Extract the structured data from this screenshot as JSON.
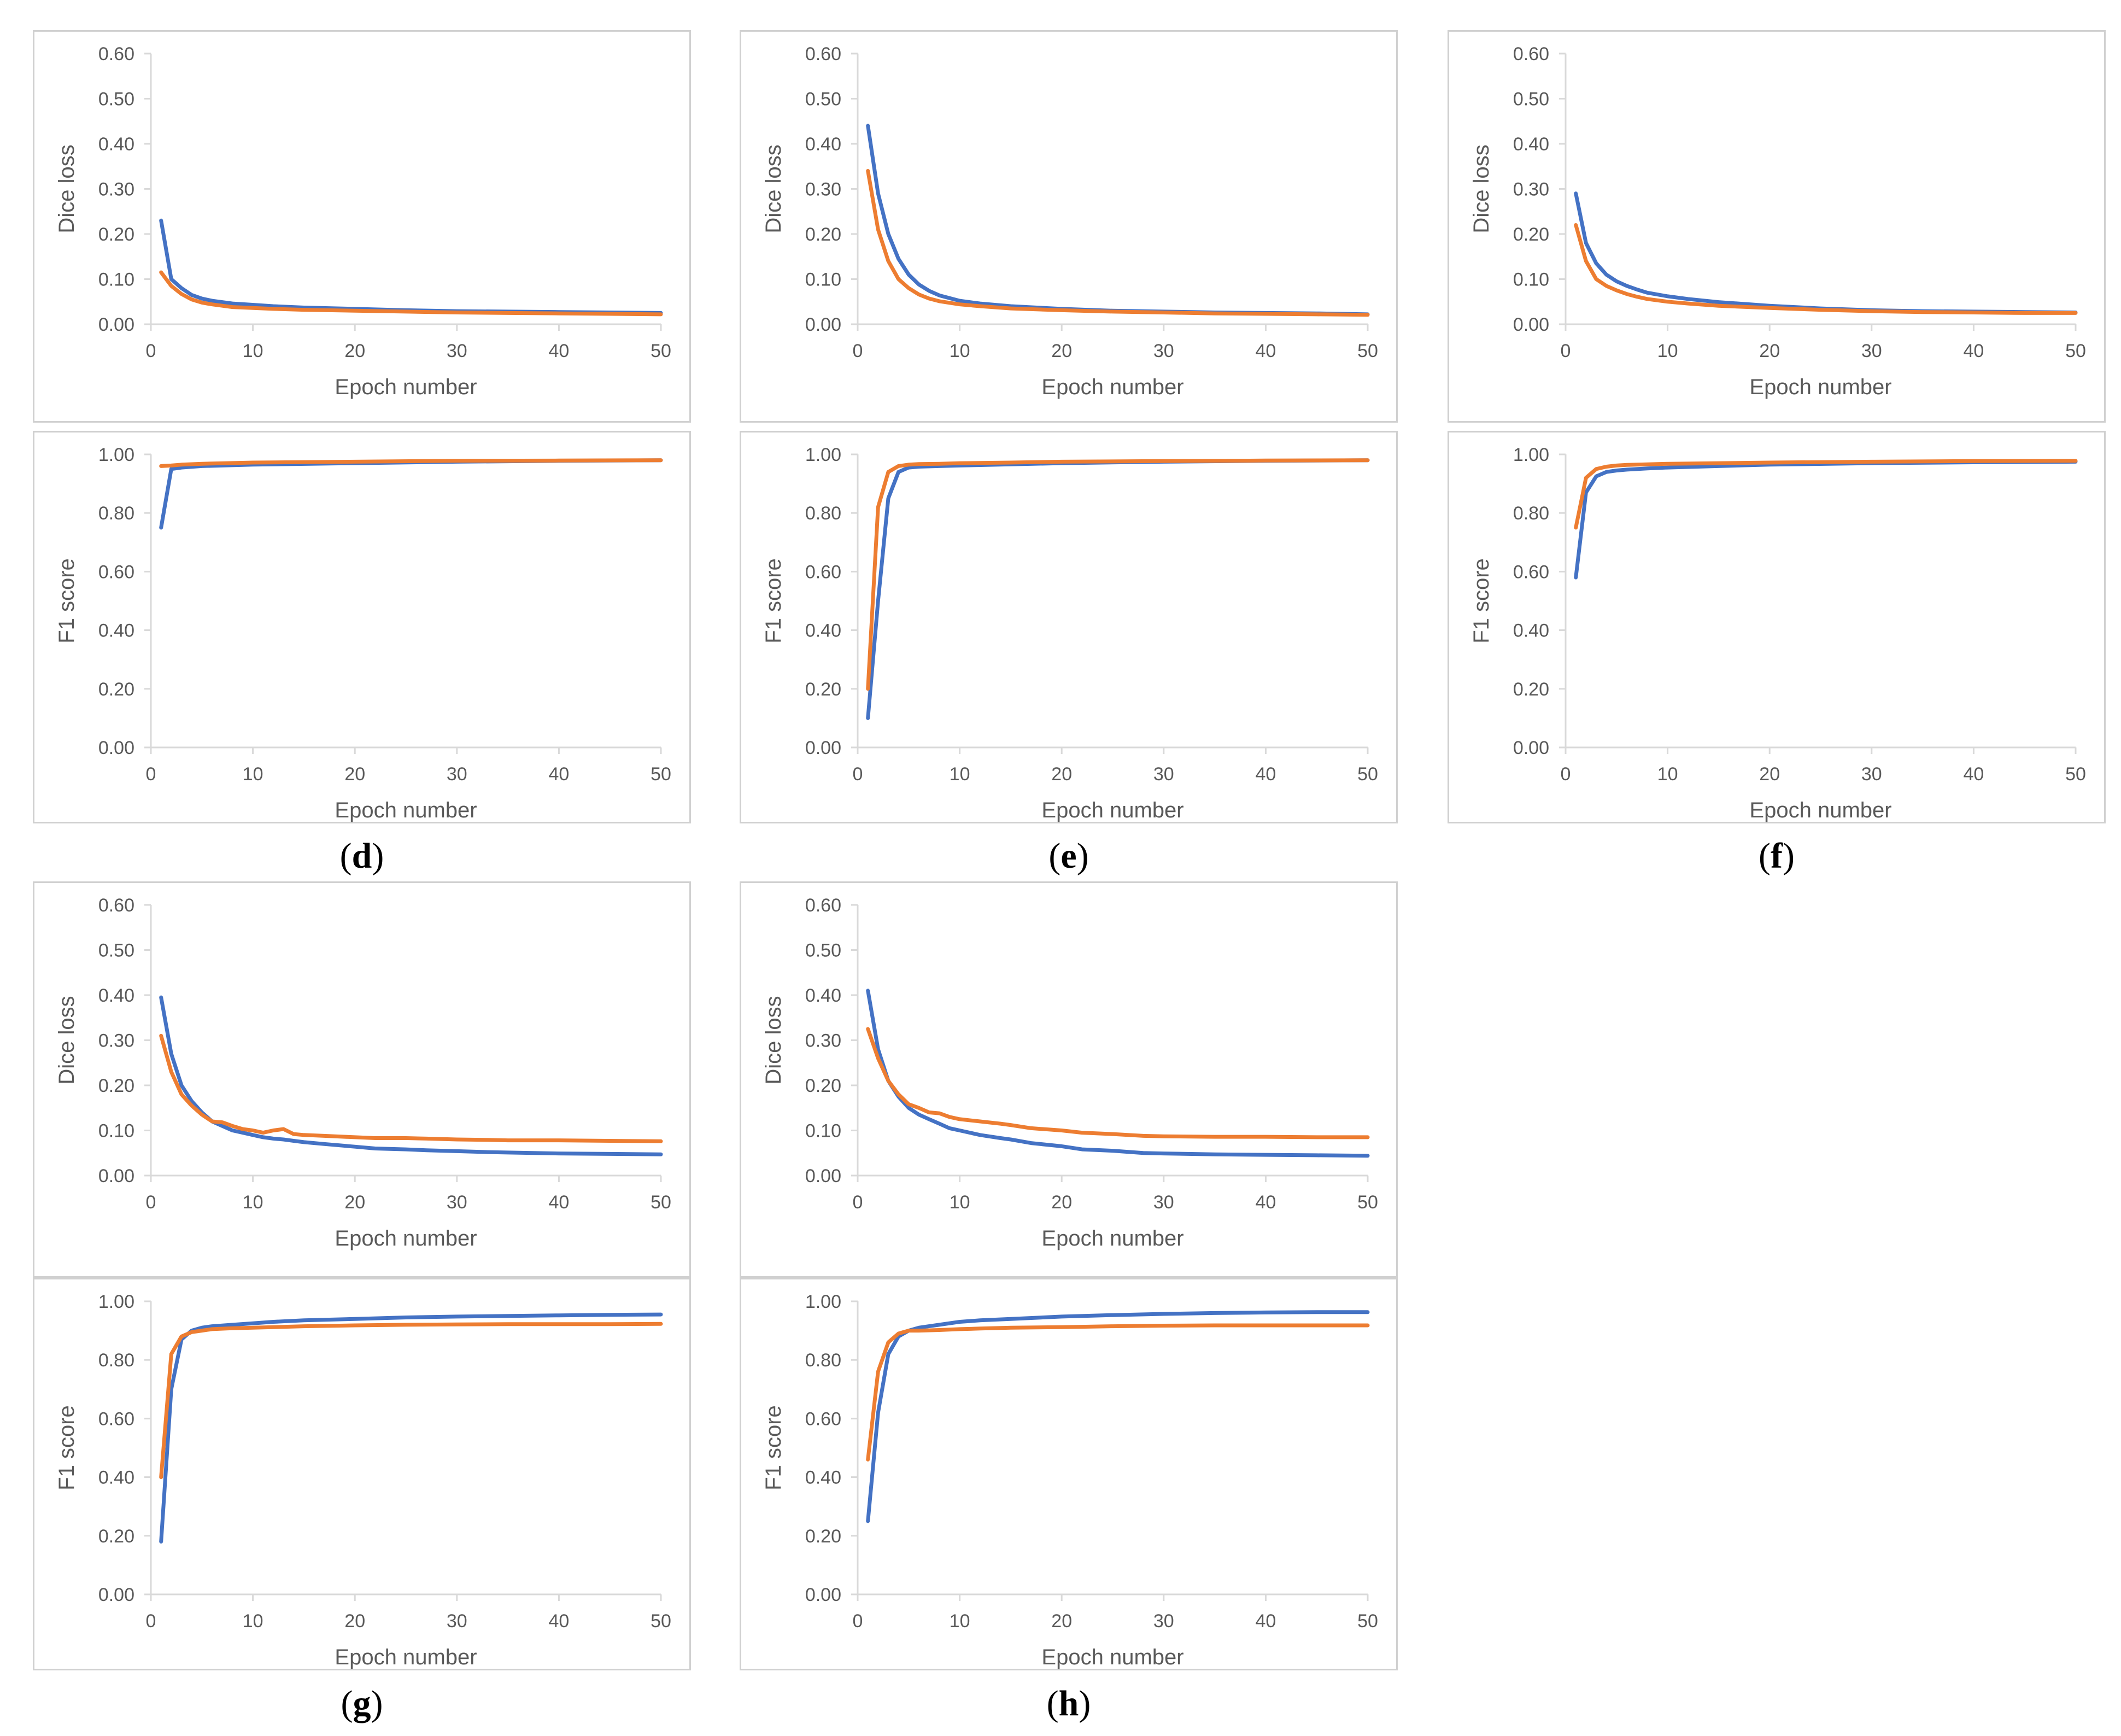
{
  "captions": [
    "d",
    "e",
    "f",
    "g",
    "h"
  ],
  "colors": {
    "series_a": "#4472C4",
    "series_b": "#ED7D31",
    "axis": "#D9D9D9",
    "text": "#595959"
  },
  "chart_data": [
    {
      "id": "d_loss",
      "panel": "d",
      "type": "line",
      "xlabel": "Epoch number",
      "ylabel": "Dice loss",
      "xlim": [
        0,
        50
      ],
      "ylim": [
        0,
        0.6
      ],
      "xticks": [
        "0",
        "10",
        "20",
        "30",
        "40",
        "50"
      ],
      "yticks": [
        "0.00",
        "0.10",
        "0.20",
        "0.30",
        "0.40",
        "0.50",
        "0.60"
      ],
      "x": [
        1,
        2,
        3,
        4,
        5,
        6,
        7,
        8,
        10,
        12,
        15,
        20,
        25,
        30,
        35,
        40,
        45,
        50
      ],
      "series": [
        {
          "name": "series_a",
          "values": [
            0.23,
            0.1,
            0.08,
            0.065,
            0.057,
            0.052,
            0.049,
            0.046,
            0.043,
            0.04,
            0.037,
            0.034,
            0.031,
            0.029,
            0.028,
            0.027,
            0.026,
            0.025
          ]
        },
        {
          "name": "series_b",
          "values": [
            0.115,
            0.085,
            0.067,
            0.055,
            0.048,
            0.044,
            0.041,
            0.038,
            0.036,
            0.034,
            0.032,
            0.03,
            0.028,
            0.026,
            0.025,
            0.024,
            0.023,
            0.022
          ]
        }
      ]
    },
    {
      "id": "d_f1",
      "panel": "d",
      "type": "line",
      "xlabel": "Epoch number",
      "ylabel": "F1 score",
      "xlim": [
        0,
        50
      ],
      "ylim": [
        0,
        1
      ],
      "xticks": [
        "0",
        "10",
        "20",
        "30",
        "40",
        "50"
      ],
      "yticks": [
        "0.00",
        "0.20",
        "0.40",
        "0.60",
        "0.80",
        "1.00"
      ],
      "x": [
        1,
        2,
        3,
        5,
        10,
        20,
        30,
        40,
        50
      ],
      "series": [
        {
          "name": "series_a",
          "values": [
            0.75,
            0.95,
            0.955,
            0.96,
            0.965,
            0.97,
            0.975,
            0.978,
            0.98
          ]
        },
        {
          "name": "series_b",
          "values": [
            0.96,
            0.962,
            0.965,
            0.968,
            0.972,
            0.975,
            0.978,
            0.979,
            0.98
          ]
        }
      ]
    },
    {
      "id": "e_loss",
      "panel": "e",
      "type": "line",
      "xlabel": "Epoch number",
      "ylabel": "Dice loss",
      "xlim": [
        0,
        50
      ],
      "ylim": [
        0,
        0.6
      ],
      "xticks": [
        "0",
        "10",
        "20",
        "30",
        "40",
        "50"
      ],
      "yticks": [
        "0.00",
        "0.10",
        "0.20",
        "0.30",
        "0.40",
        "0.50",
        "0.60"
      ],
      "x": [
        1,
        2,
        3,
        4,
        5,
        6,
        7,
        8,
        10,
        12,
        15,
        20,
        25,
        30,
        35,
        40,
        45,
        50
      ],
      "series": [
        {
          "name": "series_a",
          "values": [
            0.44,
            0.29,
            0.2,
            0.145,
            0.11,
            0.088,
            0.074,
            0.064,
            0.052,
            0.046,
            0.04,
            0.034,
            0.03,
            0.028,
            0.026,
            0.025,
            0.024,
            0.022
          ]
        },
        {
          "name": "series_b",
          "values": [
            0.34,
            0.21,
            0.14,
            0.1,
            0.08,
            0.066,
            0.057,
            0.051,
            0.044,
            0.04,
            0.035,
            0.031,
            0.028,
            0.026,
            0.024,
            0.023,
            0.022,
            0.021
          ]
        }
      ]
    },
    {
      "id": "e_f1",
      "panel": "e",
      "type": "line",
      "xlabel": "Epoch number",
      "ylabel": "F1 score",
      "xlim": [
        0,
        50
      ],
      "ylim": [
        0,
        1
      ],
      "xticks": [
        "0",
        "10",
        "20",
        "30",
        "40",
        "50"
      ],
      "yticks": [
        "0.00",
        "0.20",
        "0.40",
        "0.60",
        "0.80",
        "1.00"
      ],
      "x": [
        1,
        2,
        3,
        4,
        5,
        6,
        8,
        10,
        15,
        20,
        30,
        40,
        50
      ],
      "series": [
        {
          "name": "series_a",
          "values": [
            0.1,
            0.5,
            0.85,
            0.94,
            0.955,
            0.958,
            0.96,
            0.962,
            0.966,
            0.97,
            0.975,
            0.978,
            0.98
          ]
        },
        {
          "name": "series_b",
          "values": [
            0.2,
            0.82,
            0.94,
            0.96,
            0.965,
            0.967,
            0.968,
            0.97,
            0.972,
            0.975,
            0.977,
            0.979,
            0.98
          ]
        }
      ]
    },
    {
      "id": "f_loss",
      "panel": "f",
      "type": "line",
      "xlabel": "Epoch number",
      "ylabel": "Dice loss",
      "xlim": [
        0,
        50
      ],
      "ylim": [
        0,
        0.6
      ],
      "xticks": [
        "0",
        "10",
        "20",
        "30",
        "40",
        "50"
      ],
      "yticks": [
        "0.00",
        "0.10",
        "0.20",
        "0.30",
        "0.40",
        "0.50",
        "0.60"
      ],
      "x": [
        1,
        2,
        3,
        4,
        5,
        6,
        7,
        8,
        10,
        12,
        15,
        20,
        25,
        30,
        35,
        40,
        45,
        50
      ],
      "series": [
        {
          "name": "series_a",
          "values": [
            0.29,
            0.18,
            0.135,
            0.11,
            0.095,
            0.085,
            0.077,
            0.07,
            0.062,
            0.056,
            0.049,
            0.041,
            0.035,
            0.031,
            0.029,
            0.028,
            0.027,
            0.026
          ]
        },
        {
          "name": "series_b",
          "values": [
            0.22,
            0.14,
            0.1,
            0.085,
            0.075,
            0.067,
            0.061,
            0.056,
            0.05,
            0.046,
            0.041,
            0.036,
            0.032,
            0.029,
            0.027,
            0.026,
            0.025,
            0.025
          ]
        }
      ]
    },
    {
      "id": "f_f1",
      "panel": "f",
      "type": "line",
      "xlabel": "Epoch number",
      "ylabel": "F1 score",
      "xlim": [
        0,
        50
      ],
      "ylim": [
        0,
        1
      ],
      "xticks": [
        "0",
        "10",
        "20",
        "30",
        "40",
        "50"
      ],
      "yticks": [
        "0.00",
        "0.20",
        "0.40",
        "0.60",
        "0.80",
        "1.00"
      ],
      "x": [
        1,
        2,
        3,
        4,
        5,
        6,
        8,
        10,
        15,
        20,
        30,
        40,
        50
      ],
      "series": [
        {
          "name": "series_a",
          "values": [
            0.58,
            0.87,
            0.925,
            0.94,
            0.945,
            0.948,
            0.952,
            0.955,
            0.96,
            0.965,
            0.97,
            0.973,
            0.975
          ]
        },
        {
          "name": "series_b",
          "values": [
            0.75,
            0.92,
            0.95,
            0.958,
            0.962,
            0.964,
            0.966,
            0.968,
            0.97,
            0.972,
            0.975,
            0.977,
            0.978
          ]
        }
      ]
    },
    {
      "id": "g_loss",
      "panel": "g",
      "type": "line",
      "xlabel": "Epoch number",
      "ylabel": "Dice loss",
      "xlim": [
        0,
        50
      ],
      "ylim": [
        0,
        0.6
      ],
      "xticks": [
        "0",
        "10",
        "20",
        "30",
        "40",
        "50"
      ],
      "yticks": [
        "0.00",
        "0.10",
        "0.20",
        "0.30",
        "0.40",
        "0.50",
        "0.60"
      ],
      "x": [
        1,
        2,
        3,
        4,
        5,
        6,
        7,
        8,
        9,
        10,
        11,
        12,
        13,
        14,
        15,
        17,
        20,
        22,
        25,
        27,
        30,
        33,
        35,
        40,
        45,
        50
      ],
      "series": [
        {
          "name": "series_a",
          "values": [
            0.395,
            0.27,
            0.2,
            0.165,
            0.14,
            0.12,
            0.11,
            0.1,
            0.095,
            0.09,
            0.085,
            0.082,
            0.08,
            0.077,
            0.074,
            0.07,
            0.064,
            0.06,
            0.058,
            0.056,
            0.054,
            0.052,
            0.051,
            0.049,
            0.048,
            0.047
          ]
        },
        {
          "name": "series_b",
          "values": [
            0.31,
            0.23,
            0.18,
            0.155,
            0.135,
            0.12,
            0.118,
            0.11,
            0.103,
            0.1,
            0.095,
            0.1,
            0.103,
            0.092,
            0.09,
            0.088,
            0.085,
            0.083,
            0.083,
            0.082,
            0.08,
            0.079,
            0.078,
            0.078,
            0.077,
            0.076
          ]
        }
      ]
    },
    {
      "id": "g_f1",
      "panel": "g",
      "type": "line",
      "xlabel": "Epoch number",
      "ylabel": "F1 score",
      "xlim": [
        0,
        50
      ],
      "ylim": [
        0,
        1
      ],
      "xticks": [
        "0",
        "10",
        "20",
        "30",
        "40",
        "50"
      ],
      "yticks": [
        "0.00",
        "0.20",
        "0.40",
        "0.60",
        "0.80",
        "1.00"
      ],
      "x": [
        1,
        2,
        3,
        4,
        5,
        6,
        8,
        10,
        12,
        15,
        20,
        25,
        30,
        35,
        40,
        45,
        50
      ],
      "series": [
        {
          "name": "series_a",
          "values": [
            0.18,
            0.7,
            0.87,
            0.9,
            0.91,
            0.915,
            0.92,
            0.925,
            0.93,
            0.935,
            0.94,
            0.945,
            0.948,
            0.95,
            0.952,
            0.954,
            0.955
          ]
        },
        {
          "name": "series_b",
          "values": [
            0.4,
            0.82,
            0.88,
            0.895,
            0.9,
            0.905,
            0.908,
            0.91,
            0.912,
            0.915,
            0.918,
            0.92,
            0.921,
            0.922,
            0.922,
            0.922,
            0.923
          ]
        }
      ]
    },
    {
      "id": "h_loss",
      "panel": "h",
      "type": "line",
      "xlabel": "Epoch number",
      "ylabel": "Dice loss",
      "xlim": [
        0,
        50
      ],
      "ylim": [
        0,
        0.6
      ],
      "xticks": [
        "0",
        "10",
        "20",
        "30",
        "40",
        "50"
      ],
      "yticks": [
        "0.00",
        "0.10",
        "0.20",
        "0.30",
        "0.40",
        "0.50",
        "0.60"
      ],
      "x": [
        1,
        2,
        3,
        4,
        5,
        6,
        7,
        8,
        9,
        10,
        12,
        14,
        15,
        17,
        20,
        22,
        25,
        28,
        30,
        35,
        40,
        45,
        50
      ],
      "series": [
        {
          "name": "series_a",
          "values": [
            0.41,
            0.28,
            0.21,
            0.175,
            0.15,
            0.135,
            0.125,
            0.115,
            0.105,
            0.1,
            0.09,
            0.083,
            0.08,
            0.072,
            0.065,
            0.058,
            0.055,
            0.05,
            0.049,
            0.047,
            0.046,
            0.045,
            0.044
          ]
        },
        {
          "name": "series_b",
          "values": [
            0.325,
            0.26,
            0.21,
            0.18,
            0.158,
            0.15,
            0.14,
            0.138,
            0.13,
            0.125,
            0.12,
            0.115,
            0.112,
            0.105,
            0.1,
            0.095,
            0.092,
            0.088,
            0.087,
            0.086,
            0.086,
            0.085,
            0.085
          ]
        }
      ]
    },
    {
      "id": "h_f1",
      "panel": "h",
      "type": "line",
      "xlabel": "Epoch number",
      "ylabel": "F1 score",
      "xlim": [
        0,
        50
      ],
      "ylim": [
        0,
        1
      ],
      "xticks": [
        "0",
        "10",
        "20",
        "30",
        "40",
        "50"
      ],
      "yticks": [
        "0.00",
        "0.20",
        "0.40",
        "0.60",
        "0.80",
        "1.00"
      ],
      "x": [
        1,
        2,
        3,
        4,
        5,
        6,
        8,
        10,
        12,
        15,
        20,
        25,
        30,
        35,
        40,
        45,
        50
      ],
      "series": [
        {
          "name": "series_a",
          "values": [
            0.25,
            0.62,
            0.82,
            0.88,
            0.9,
            0.91,
            0.92,
            0.93,
            0.935,
            0.94,
            0.948,
            0.953,
            0.957,
            0.96,
            0.962,
            0.963,
            0.963
          ]
        },
        {
          "name": "series_b",
          "values": [
            0.46,
            0.76,
            0.86,
            0.89,
            0.9,
            0.9,
            0.902,
            0.905,
            0.907,
            0.91,
            0.912,
            0.915,
            0.917,
            0.918,
            0.918,
            0.918,
            0.918
          ]
        }
      ]
    }
  ]
}
